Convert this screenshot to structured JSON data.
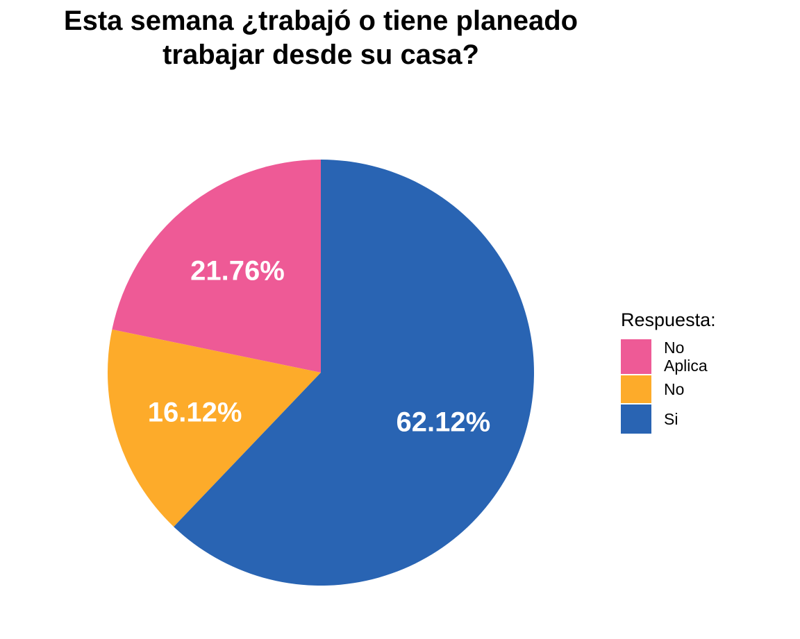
{
  "chart_data": {
    "type": "pie",
    "title": [
      "Esta semana ¿trabajó o tiene planeado",
      "trabajar desde su casa?"
    ],
    "legend": {
      "title": "Respuesta:",
      "placement": "right"
    },
    "slices": [
      {
        "legend_label": [
          "No",
          "Aplica"
        ],
        "value": 21.76,
        "label": "21.76%",
        "color": "#EE5A96"
      },
      {
        "legend_label": [
          "No"
        ],
        "value": 16.12,
        "label": "16.12%",
        "color": "#FDAB2A"
      },
      {
        "legend_label": [
          "Si"
        ],
        "value": 62.12,
        "label": "62.12%",
        "color": "#2964B3"
      }
    ]
  }
}
